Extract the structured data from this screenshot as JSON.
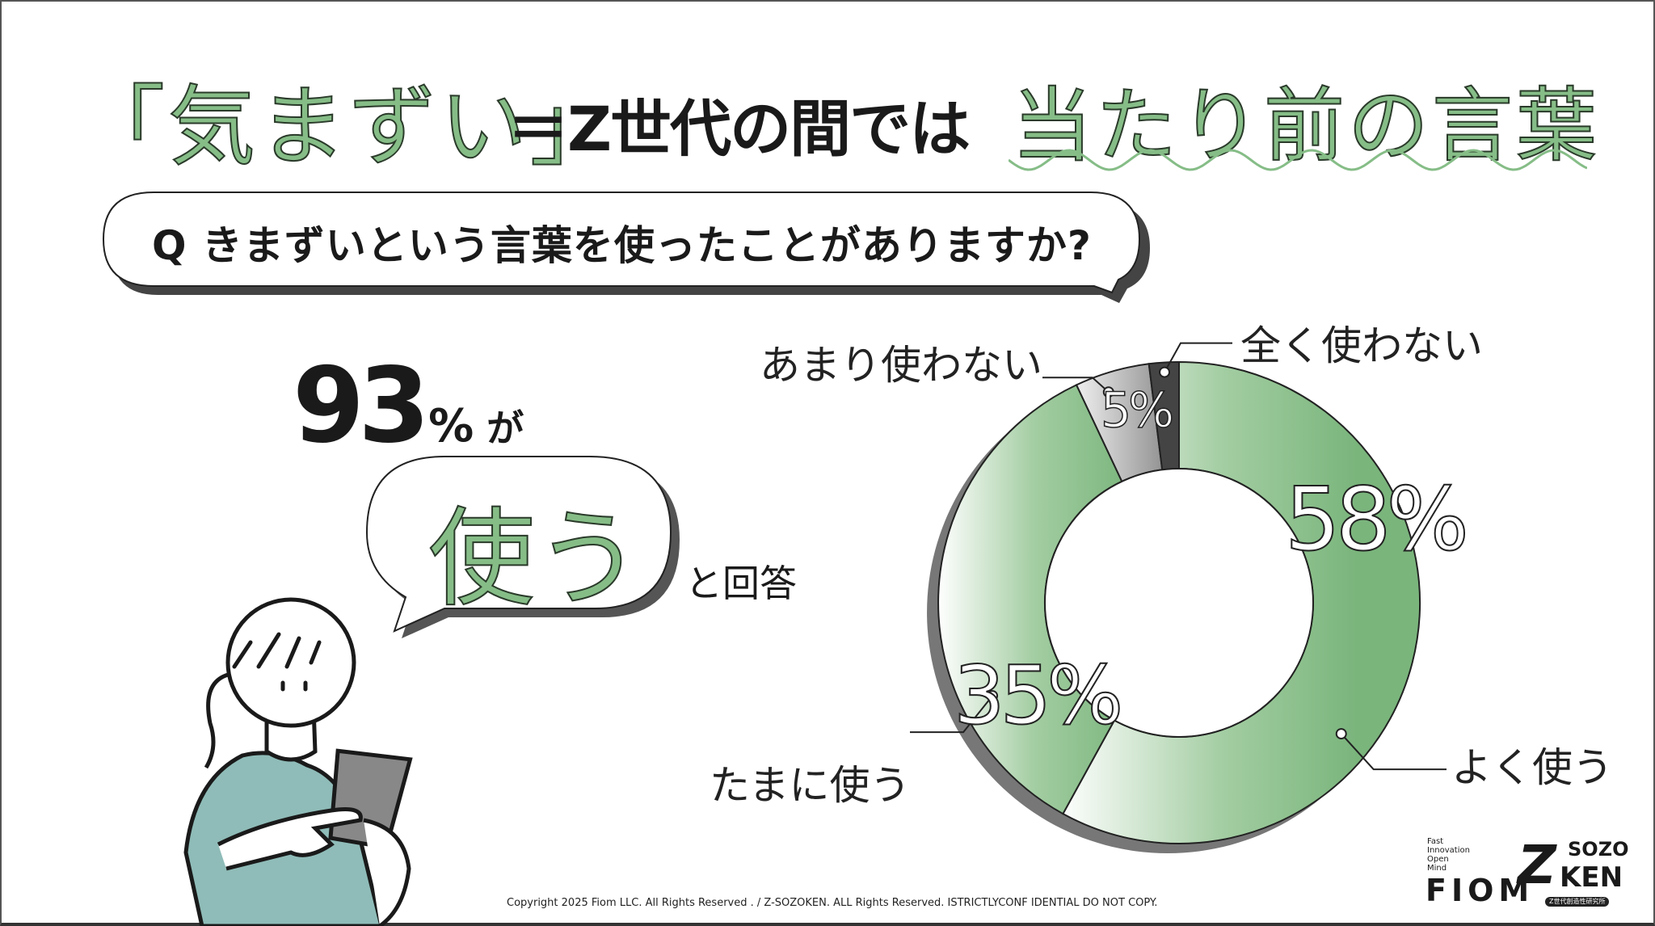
{
  "title": {
    "part1": "「気まずい」",
    "part2": "＝Z世代の間では",
    "part3": "当たり前の言葉"
  },
  "question": "Q きまずいという言葉を使ったことがありますか?",
  "highlight": {
    "number": "93",
    "percent": "%",
    "particle": "が",
    "bubble_word": "使う",
    "suffix": "と回答"
  },
  "colors": {
    "accent_green": "#86bd87",
    "slice_green": "#7ab57c",
    "slice_gray": "#9a9a9a",
    "slice_dark": "#444444",
    "shirt": "#8fbcb8"
  },
  "chart_data": {
    "type": "pie",
    "style": "donut",
    "direction": "clockwise from top",
    "slices": [
      {
        "label": "よく使う",
        "value": 58,
        "value_label": "58%"
      },
      {
        "label": "たまに使う",
        "value": 35,
        "value_label": "35%"
      },
      {
        "label": "あまり使わない",
        "value": 5,
        "value_label": "5%"
      },
      {
        "label": "全く使わない",
        "value": 2,
        "value_label": ""
      }
    ]
  },
  "footer": {
    "copyright": "Copyright 2025 Fiom LLC. All Rights Reserved . / Z-SOZOKEN. ALL Rights Reserved. ISTRICTLYCONF IDENTIAL DO NOT COPY.",
    "fiom_tagline": "Fast\nInnovation\nOpen\nMind",
    "fiom_logo": "FIOM",
    "zsozoken_logo": {
      "z": "Z",
      "top": "SOZO",
      "bottom": "KEN",
      "sub": "Z世代創造性研究所"
    }
  }
}
